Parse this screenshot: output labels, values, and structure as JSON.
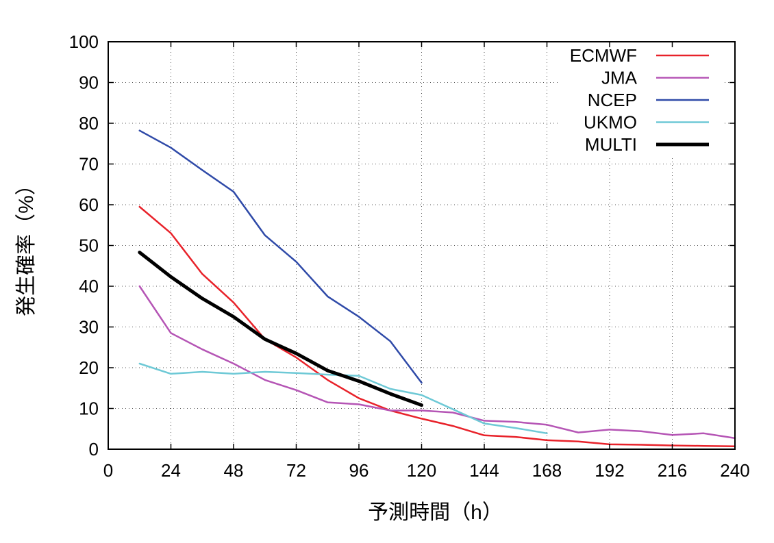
{
  "chart_data": {
    "type": "line",
    "title": "",
    "xlabel": "予測時間（h）",
    "ylabel": "発生確率（%）",
    "xlim": [
      0,
      240
    ],
    "ylim": [
      0,
      100
    ],
    "xticks": [
      0,
      24,
      48,
      72,
      96,
      120,
      144,
      168,
      192,
      216,
      240
    ],
    "yticks": [
      0,
      10,
      20,
      30,
      40,
      50,
      60,
      70,
      80,
      90,
      100
    ],
    "grid": true,
    "legend_position": "top-right",
    "series": [
      {
        "name": "ECMWF",
        "color": "#e8222a",
        "width": "normal",
        "x": [
          12,
          24,
          36,
          48,
          60,
          72,
          84,
          96,
          108,
          120,
          132,
          144,
          156,
          168,
          180,
          192,
          204,
          216,
          228,
          240
        ],
        "y": [
          59.5,
          53,
          43,
          36,
          27,
          22.5,
          17,
          12.5,
          9.5,
          7.5,
          5.7,
          3.4,
          3,
          2.2,
          1.9,
          1.2,
          1.1,
          0.9,
          0.8,
          0.7
        ]
      },
      {
        "name": "JMA",
        "color": "#b555b5",
        "width": "normal",
        "x": [
          12,
          24,
          36,
          48,
          60,
          72,
          84,
          96,
          108,
          120,
          132,
          144,
          156,
          168,
          180,
          192,
          204,
          216,
          228,
          240
        ],
        "y": [
          40,
          28.5,
          24.5,
          21,
          17,
          14.5,
          11.5,
          11,
          9.5,
          9.5,
          9,
          7,
          6.7,
          6,
          4.1,
          4.8,
          4.4,
          3.5,
          3.9,
          2.7
        ]
      },
      {
        "name": "NCEP",
        "color": "#2f4aa8",
        "width": "normal",
        "x": [
          12,
          24,
          36,
          48,
          60,
          72,
          84,
          96,
          108,
          120
        ],
        "y": [
          78.2,
          74,
          68.5,
          63.2,
          52.5,
          46,
          37.5,
          32.5,
          26.5,
          16.3
        ]
      },
      {
        "name": "UKMO",
        "color": "#6ec9d6",
        "width": "normal",
        "x": [
          12,
          24,
          36,
          48,
          60,
          72,
          84,
          96,
          108,
          120,
          132,
          144,
          156,
          168
        ],
        "y": [
          21,
          18.5,
          19,
          18.5,
          19,
          18.7,
          18.3,
          18,
          14.8,
          13.3,
          9.8,
          6.3,
          5.2,
          3.9
        ]
      },
      {
        "name": "MULTI",
        "color": "#000000",
        "width": "thick",
        "x": [
          12,
          24,
          36,
          48,
          60,
          72,
          84,
          96,
          108,
          120
        ],
        "y": [
          48.3,
          42.3,
          37,
          32.5,
          27,
          23.5,
          19.3,
          16.7,
          13.6,
          10.8
        ]
      }
    ]
  }
}
